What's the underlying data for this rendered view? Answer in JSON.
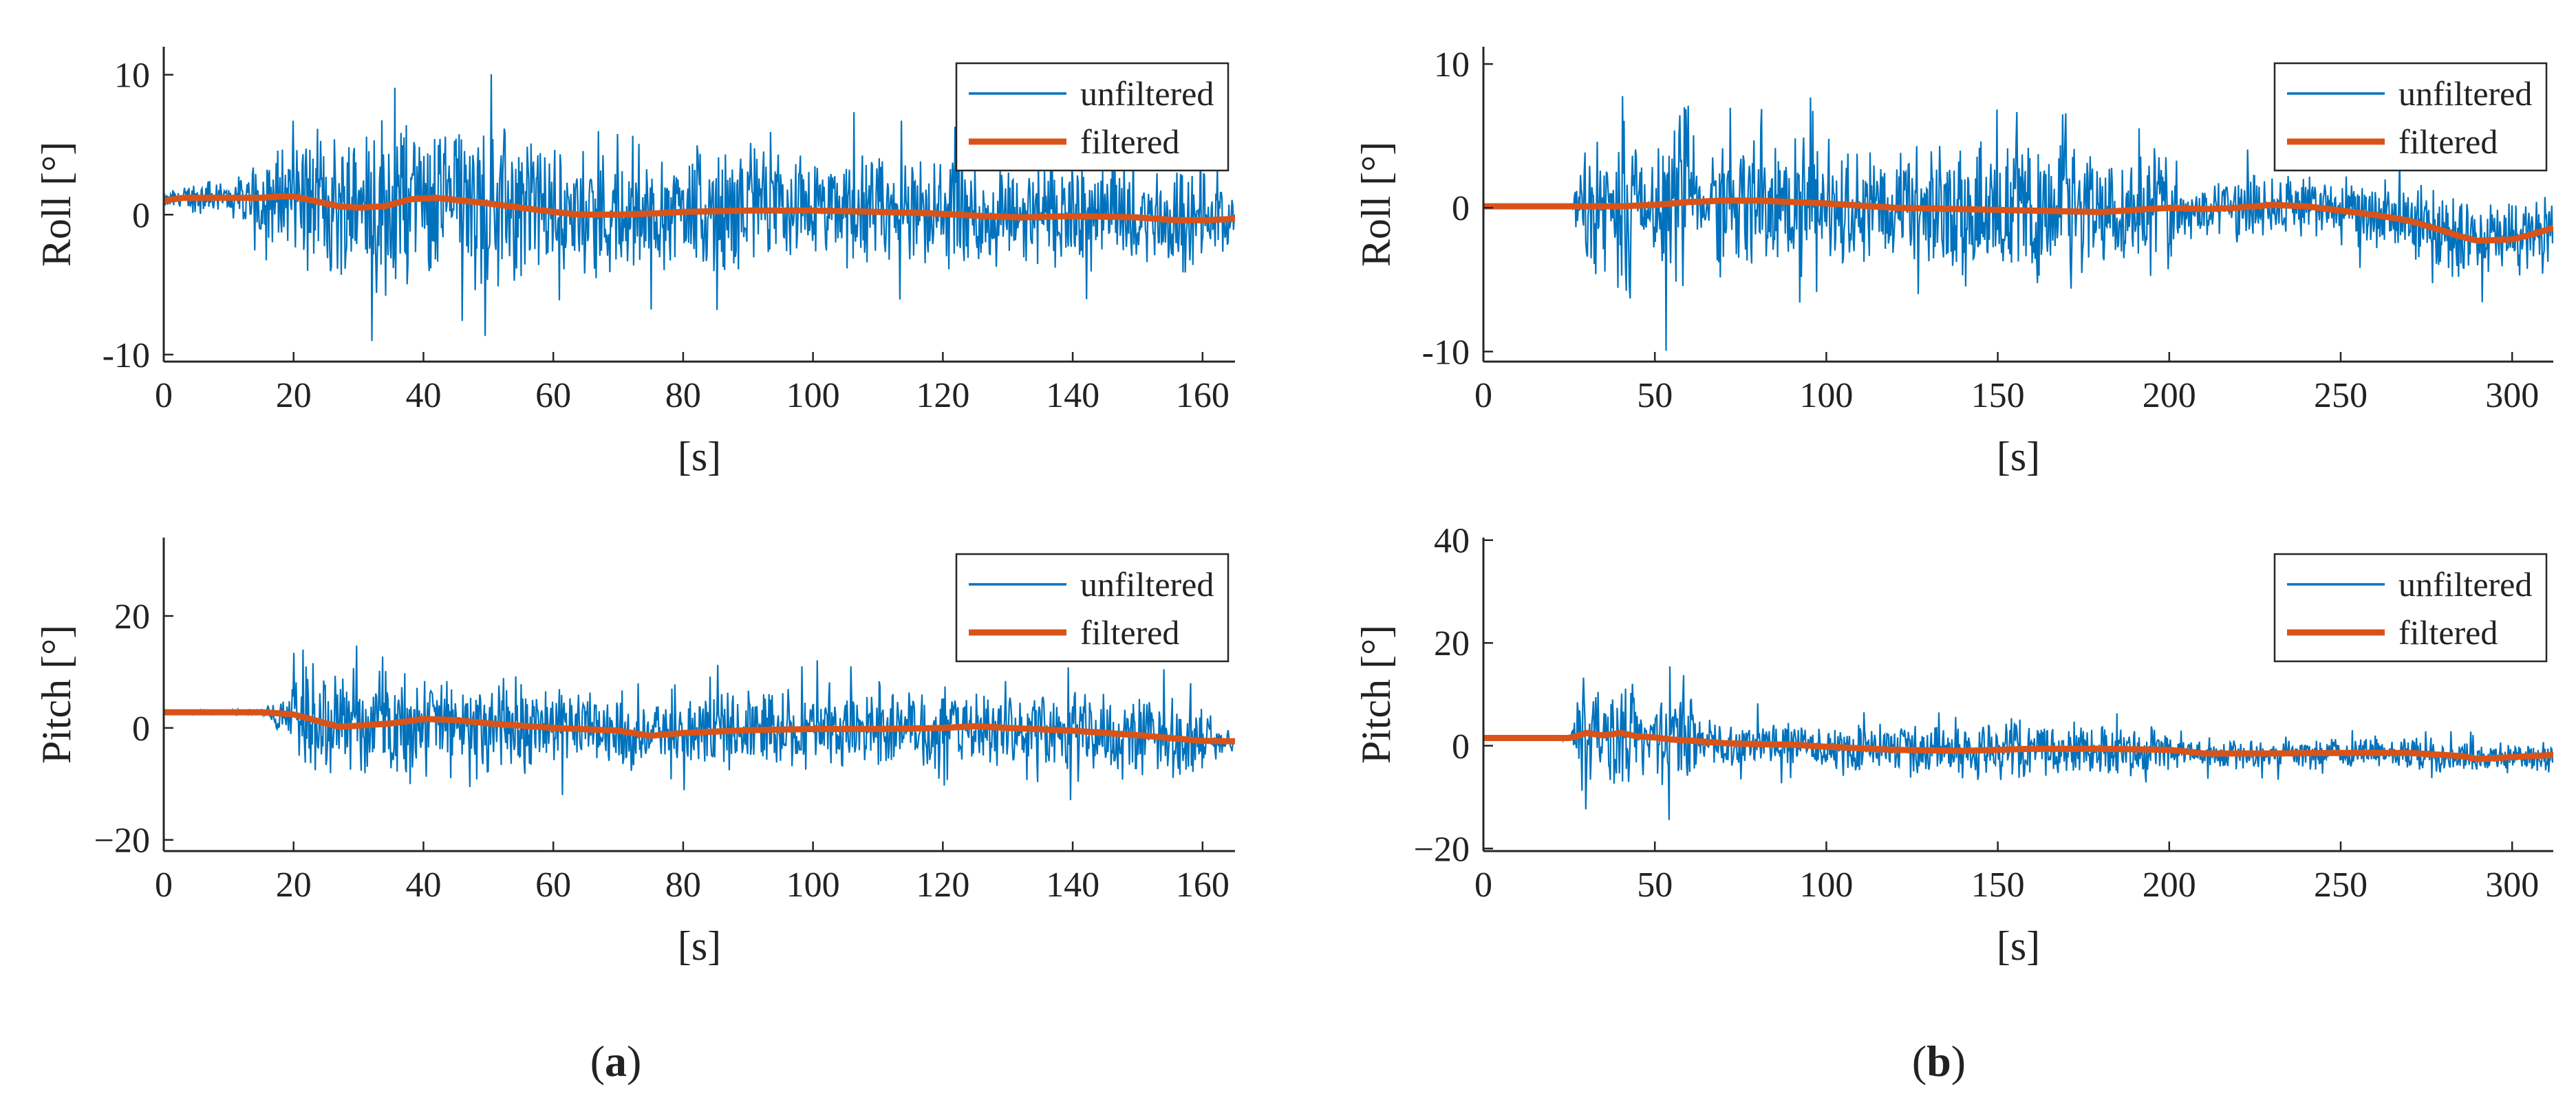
{
  "colors": {
    "unfiltered": "#0072BD",
    "filtered": "#D95319",
    "axis": "#262626"
  },
  "figure": {
    "captions": [
      {
        "open": "(",
        "letter": "a",
        "close": ")"
      },
      {
        "open": "(",
        "letter": "b",
        "close": ")"
      }
    ]
  },
  "chart_data": [
    {
      "type": "line",
      "panel": "a",
      "xlabel": "[s]",
      "ylabel": "Roll [°]",
      "xlim": [
        0,
        165
      ],
      "ylim": [
        -10.5,
        12
      ],
      "xticks": [
        0,
        20,
        40,
        60,
        80,
        100,
        120,
        140,
        160
      ],
      "xtick_labels": [
        "0",
        "20",
        "40",
        "60",
        "80",
        "100",
        "120",
        "140",
        "160"
      ],
      "yticks": [
        -10,
        0,
        10
      ],
      "ytick_labels": [
        "-10",
        "0",
        "10"
      ],
      "legend": [
        "unfiltered",
        "filtered"
      ],
      "legend_position": "top-right",
      "series": [
        {
          "name": "unfiltered",
          "noise_start": 15,
          "env_t": [
            0,
            4,
            6,
            10,
            15,
            20,
            30,
            34,
            40,
            45,
            55,
            60,
            70,
            78,
            80,
            90,
            100,
            120,
            140,
            160,
            165
          ],
          "env_v": [
            0.6,
            1.2,
            1.6,
            1.2,
            3.0,
            5.0,
            6.5,
            7.5,
            7.0,
            6.5,
            6.5,
            5.0,
            5.0,
            4.5,
            5.0,
            5.0,
            4.5,
            4.5,
            4.2,
            4.0,
            1.5
          ]
        },
        {
          "name": "filtered",
          "x": [
            0,
            3,
            8,
            12,
            15,
            18,
            20,
            23,
            27,
            30,
            34,
            38,
            42,
            46,
            50,
            55,
            60,
            64,
            70,
            76,
            80,
            90,
            100,
            110,
            118,
            126,
            132,
            140,
            150,
            156,
            160,
            165
          ],
          "y": [
            1.0,
            1.2,
            1.2,
            1.2,
            1.2,
            1.3,
            1.3,
            1.0,
            0.6,
            0.5,
            0.6,
            1.1,
            1.2,
            1.0,
            0.8,
            0.5,
            0.2,
            0.0,
            0.0,
            0.1,
            0.2,
            0.3,
            0.3,
            0.2,
            0.1,
            -0.1,
            -0.2,
            -0.1,
            -0.2,
            -0.4,
            -0.4,
            -0.3
          ]
        }
      ]
    },
    {
      "type": "line",
      "panel": "b",
      "xlabel": "[s]",
      "ylabel": "Roll [°]",
      "xlim": [
        0,
        312
      ],
      "ylim": [
        -10.7,
        11.2
      ],
      "xticks": [
        0,
        50,
        100,
        150,
        200,
        250,
        300
      ],
      "xtick_labels": [
        "0",
        "50",
        "100",
        "150",
        "200",
        "250",
        "300"
      ],
      "yticks": [
        -10,
        0,
        10
      ],
      "ytick_labels": [
        "-10",
        "0",
        "10"
      ],
      "legend": [
        "unfiltered",
        "filtered"
      ],
      "legend_position": "top-right",
      "series": [
        {
          "name": "unfiltered",
          "noise_start": 25,
          "env_t": [
            0,
            25,
            28,
            33,
            37,
            40,
            44,
            48,
            52,
            56,
            60,
            63,
            66,
            80,
            100,
            150,
            165,
            200,
            207,
            210,
            230,
            250,
            280,
            300,
            312
          ],
          "env_v": [
            0.05,
            0.1,
            3.0,
            7.0,
            2.0,
            6.5,
            8.0,
            1.5,
            6.0,
            8.0,
            8.5,
            2.0,
            4.5,
            5.0,
            4.5,
            5.0,
            5.5,
            5.0,
            1.0,
            3.0,
            2.5,
            2.5,
            3.0,
            3.0,
            2.5
          ]
        },
        {
          "name": "filtered",
          "x": [
            0,
            20,
            25,
            30,
            40,
            50,
            60,
            70,
            80,
            100,
            120,
            140,
            160,
            180,
            200,
            210,
            220,
            230,
            240,
            250,
            260,
            270,
            280,
            285,
            290,
            300,
            305,
            312
          ],
          "y": [
            0.1,
            0.1,
            0.1,
            0.1,
            0.1,
            0.2,
            0.4,
            0.5,
            0.5,
            0.3,
            0.0,
            -0.1,
            -0.2,
            -0.3,
            0.0,
            -0.1,
            0.0,
            0.2,
            0.1,
            -0.2,
            -0.5,
            -0.9,
            -1.6,
            -2.0,
            -2.3,
            -2.2,
            -1.9,
            -1.4
          ]
        }
      ]
    },
    {
      "type": "line",
      "panel": "a",
      "xlabel": "[s]",
      "ylabel": "Pitch [°]",
      "xlim": [
        0,
        165
      ],
      "ylim": [
        -22,
        34
      ],
      "xticks": [
        0,
        20,
        40,
        60,
        80,
        100,
        120,
        140,
        160
      ],
      "xtick_labels": [
        "0",
        "20",
        "40",
        "60",
        "80",
        "100",
        "120",
        "140",
        "160"
      ],
      "yticks": [
        -20,
        0,
        20
      ],
      "ytick_labels": [
        "−20",
        "0",
        "20"
      ],
      "legend": [
        "unfiltered",
        "filtered"
      ],
      "legend_position": "top-right",
      "series": [
        {
          "name": "unfiltered",
          "noise_start": 15,
          "env_t": [
            0,
            15,
            20,
            24,
            30,
            40,
            45,
            55,
            60,
            70,
            78,
            80,
            90,
            100,
            120,
            140,
            150,
            160,
            165
          ],
          "env_v": [
            0.3,
            0.5,
            8.0,
            12.0,
            10.0,
            11.0,
            9.0,
            10.0,
            8.0,
            9.0,
            6.0,
            7.0,
            8.0,
            8.0,
            7.5,
            8.0,
            9.0,
            6.0,
            1.0
          ]
        },
        {
          "name": "filtered",
          "x": [
            0,
            5,
            10,
            15,
            18,
            20,
            22,
            25,
            27,
            30,
            35,
            40,
            45,
            50,
            60,
            70,
            75,
            80,
            90,
            100,
            110,
            120,
            125,
            130,
            140,
            150,
            160,
            165
          ],
          "y": [
            2.8,
            2.8,
            2.8,
            2.8,
            2.6,
            2.4,
            1.8,
            0.8,
            0.2,
            0.4,
            0.8,
            1.6,
            1.4,
            0.8,
            0.0,
            -0.5,
            -1.4,
            -0.9,
            -0.4,
            -0.2,
            -0.2,
            0.0,
            0.3,
            0.0,
            -0.5,
            -1.3,
            -2.3,
            -2.4
          ]
        }
      ]
    },
    {
      "type": "line",
      "panel": "b",
      "xlabel": "[s]",
      "ylabel": "Pitch [°]",
      "xlim": [
        0,
        312
      ],
      "ylim": [
        -20.5,
        40.5
      ],
      "xticks": [
        0,
        50,
        100,
        150,
        200,
        250,
        300
      ],
      "xtick_labels": [
        "0",
        "50",
        "100",
        "150",
        "200",
        "250",
        "300"
      ],
      "yticks": [
        -20,
        0,
        20,
        40
      ],
      "ytick_labels": [
        "−20",
        "0",
        "20",
        "40"
      ],
      "legend": [
        "unfiltered",
        "filtered"
      ],
      "legend_position": "top-right",
      "series": [
        {
          "name": "unfiltered",
          "noise_start": 25,
          "env_t": [
            0,
            25,
            27,
            30,
            35,
            40,
            44,
            48,
            52,
            56,
            60,
            63,
            66,
            80,
            100,
            140,
            160,
            180,
            200,
            207,
            210,
            250,
            300,
            312
          ],
          "env_v": [
            0.2,
            0.3,
            8.0,
            18.0,
            6.0,
            14.0,
            12.0,
            2.0,
            10.0,
            12.0,
            14.0,
            3.0,
            5.0,
            5.0,
            5.0,
            6.0,
            7.0,
            6.0,
            5.0,
            1.5,
            3.5,
            3.5,
            3.5,
            3.0
          ]
        },
        {
          "name": "filtered",
          "x": [
            0,
            20,
            25,
            27,
            30,
            35,
            40,
            45,
            50,
            55,
            60,
            70,
            80,
            90,
            100,
            120,
            140,
            160,
            180,
            200,
            210,
            230,
            250,
            270,
            285,
            290,
            300,
            312
          ],
          "y": [
            1.5,
            1.5,
            1.5,
            1.8,
            2.5,
            2.0,
            2.5,
            1.8,
            1.6,
            1.2,
            1.0,
            0.5,
            0.3,
            0.2,
            -0.2,
            -0.8,
            -1.0,
            -0.6,
            -0.6,
            -0.8,
            -1.5,
            -1.5,
            -1.4,
            -1.4,
            -2.0,
            -2.6,
            -2.2,
            -1.8
          ]
        }
      ]
    }
  ]
}
